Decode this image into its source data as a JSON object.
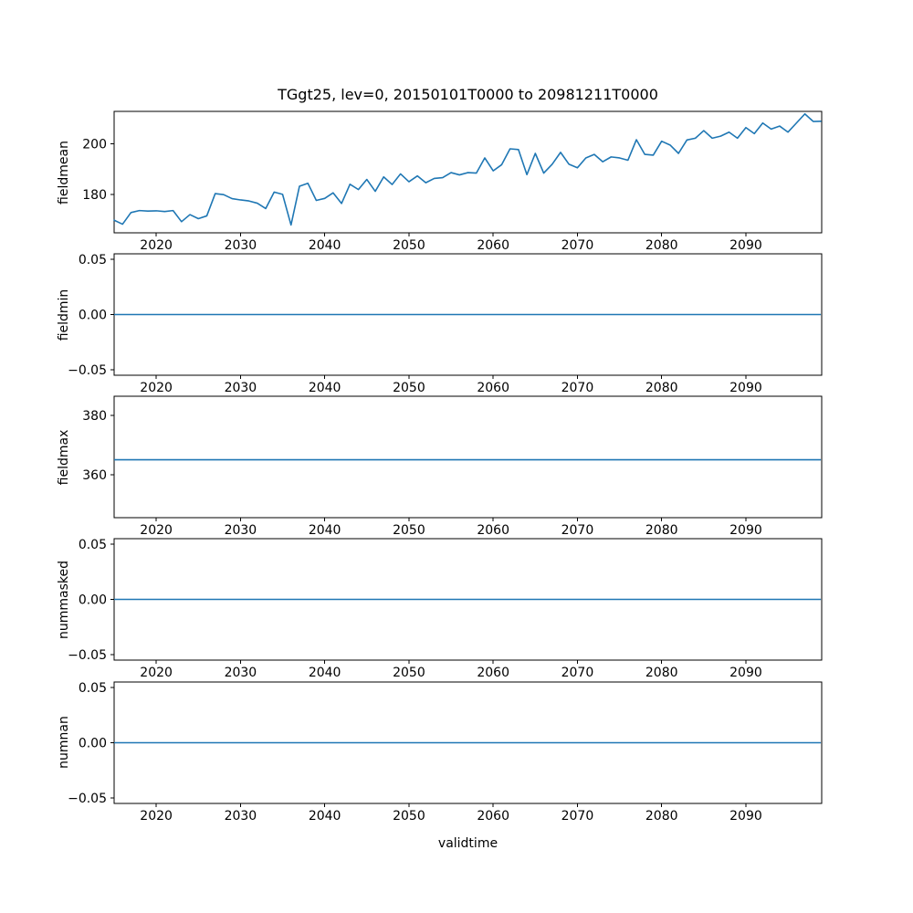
{
  "figure": {
    "title": "TGgt25, lev=0, 20150101T0000 to 20981211T0000",
    "xlabel": "validtime",
    "background": "#ffffff",
    "line_color": "#1f77b4",
    "frame_color": "#000000"
  },
  "chart_data": [
    {
      "type": "line",
      "name": "fieldmean",
      "ylabel": "fieldmean",
      "x_range": [
        2015,
        2099
      ],
      "xticks": [
        2020,
        2030,
        2040,
        2050,
        2060,
        2070,
        2080,
        2090
      ],
      "ylim": [
        164.8,
        212.8
      ],
      "yticks": [
        180,
        200
      ],
      "ytick_labels": [
        "180",
        "200"
      ],
      "line_color": "#1f77b4",
      "x": [
        2015,
        2016,
        2017,
        2018,
        2019,
        2020,
        2021,
        2022,
        2023,
        2024,
        2025,
        2026,
        2027,
        2028,
        2029,
        2030,
        2031,
        2032,
        2033,
        2034,
        2035,
        2036,
        2037,
        2038,
        2039,
        2040,
        2041,
        2042,
        2043,
        2044,
        2045,
        2046,
        2047,
        2048,
        2049,
        2050,
        2051,
        2052,
        2053,
        2054,
        2055,
        2056,
        2057,
        2058,
        2059,
        2060,
        2061,
        2062,
        2063,
        2064,
        2065,
        2066,
        2067,
        2068,
        2069,
        2070,
        2071,
        2072,
        2073,
        2074,
        2075,
        2076,
        2077,
        2078,
        2079,
        2080,
        2081,
        2082,
        2083,
        2084,
        2085,
        2086,
        2087,
        2088,
        2089,
        2090,
        2091,
        2092,
        2093,
        2094,
        2095,
        2096,
        2097,
        2098,
        2098.9
      ],
      "values": [
        169.8,
        168.2,
        172.8,
        173.6,
        173.4,
        173.5,
        173.2,
        173.6,
        169.2,
        172.0,
        170.4,
        171.5,
        180.3,
        179.9,
        178.3,
        177.8,
        177.4,
        176.5,
        174.4,
        180.9,
        180.0,
        167.9,
        183.2,
        184.4,
        177.6,
        178.4,
        180.6,
        176.4,
        184.0,
        181.9,
        185.9,
        181.2,
        186.9,
        183.9,
        188.1,
        185.0,
        187.3,
        184.6,
        186.3,
        186.6,
        188.6,
        187.7,
        188.6,
        188.4,
        194.4,
        189.3,
        191.7,
        198.0,
        197.7,
        187.8,
        196.2,
        188.4,
        191.9,
        196.6,
        191.9,
        190.5,
        194.4,
        195.8,
        192.9,
        194.8,
        194.4,
        193.5,
        201.6,
        195.8,
        195.5,
        201.0,
        199.5,
        196.2,
        201.5,
        202.2,
        205.2,
        202.2,
        203.0,
        204.6,
        202.2,
        206.4,
        204.0,
        208.2,
        205.8,
        207.0,
        204.6,
        208.2,
        211.8,
        208.8,
        208.9
      ]
    },
    {
      "type": "line",
      "name": "fieldmin",
      "ylabel": "fieldmin",
      "x_range": [
        2015,
        2099
      ],
      "xticks": [
        2020,
        2030,
        2040,
        2050,
        2060,
        2070,
        2080,
        2090
      ],
      "ylim": [
        -0.055,
        0.055
      ],
      "yticks": [
        0.05,
        0.0,
        -0.05
      ],
      "ytick_labels": [
        "0.05",
        "0.00",
        "−0.05"
      ],
      "line_color": "#1f77b4",
      "constant_value": 0.0,
      "x_start": 2015,
      "x_end": 2098.9
    },
    {
      "type": "line",
      "name": "fieldmax",
      "ylabel": "fieldmax",
      "x_range": [
        2015,
        2099
      ],
      "xticks": [
        2020,
        2030,
        2040,
        2050,
        2060,
        2070,
        2080,
        2090
      ],
      "ylim": [
        345.4,
        386.5
      ],
      "yticks": [
        360,
        380
      ],
      "ytick_labels": [
        "360",
        "380"
      ],
      "line_color": "#1f77b4",
      "constant_value": 365.0,
      "x_start": 2015,
      "x_end": 2098.9
    },
    {
      "type": "line",
      "name": "nummasked",
      "ylabel": "nummasked",
      "x_range": [
        2015,
        2099
      ],
      "xticks": [
        2020,
        2030,
        2040,
        2050,
        2060,
        2070,
        2080,
        2090
      ],
      "ylim": [
        -0.055,
        0.055
      ],
      "yticks": [
        0.05,
        0.0,
        -0.05
      ],
      "ytick_labels": [
        "0.05",
        "0.00",
        "−0.05"
      ],
      "line_color": "#1f77b4",
      "constant_value": 0.0,
      "x_start": 2015,
      "x_end": 2098.9
    },
    {
      "type": "line",
      "name": "numnan",
      "ylabel": "numnan",
      "x_range": [
        2015,
        2099
      ],
      "xticks": [
        2020,
        2030,
        2040,
        2050,
        2060,
        2070,
        2080,
        2090
      ],
      "ylim": [
        -0.055,
        0.055
      ],
      "yticks": [
        0.05,
        0.0,
        -0.05
      ],
      "ytick_labels": [
        "0.05",
        "0.00",
        "−0.05"
      ],
      "line_color": "#1f77b4",
      "constant_value": 0.0,
      "x_start": 2015,
      "x_end": 2098.9
    }
  ]
}
